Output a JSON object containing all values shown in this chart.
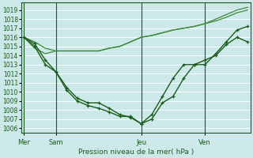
{
  "bg_color": "#cce8e8",
  "grid_color": "#b8d8d8",
  "line_color_dark": "#1a5c1a",
  "line_color_mid": "#3a8a3a",
  "xlabel": "Pression niveau de la mer( hPa )",
  "ylim": [
    1005.5,
    1019.8
  ],
  "yticks": [
    1006,
    1007,
    1008,
    1009,
    1010,
    1011,
    1012,
    1013,
    1014,
    1015,
    1016,
    1017,
    1018,
    1019
  ],
  "xtick_labels": [
    "Mer",
    "Sam",
    "Jeu",
    "Ven"
  ],
  "xtick_positions": [
    0,
    6,
    22,
    34
  ],
  "total_points": 42,
  "line1_x": [
    0,
    2,
    4,
    6,
    8,
    10,
    12,
    14,
    16,
    18,
    20,
    22,
    24,
    26,
    28,
    30,
    32,
    34,
    36,
    38,
    40,
    42
  ],
  "line1_y": [
    1016.0,
    1015.5,
    1014.8,
    1014.5,
    1014.5,
    1014.5,
    1014.5,
    1014.5,
    1014.8,
    1015.0,
    1015.5,
    1016.0,
    1016.2,
    1016.5,
    1016.8,
    1017.0,
    1017.2,
    1017.5,
    1017.8,
    1018.2,
    1018.7,
    1019.0
  ],
  "line2_x": [
    0,
    2,
    4,
    6,
    8,
    10,
    12,
    14,
    16,
    18,
    20,
    22,
    24,
    26,
    28,
    30,
    32,
    34,
    36,
    38,
    40,
    42
  ],
  "line2_y": [
    1016.0,
    1014.8,
    1014.2,
    1014.5,
    1014.5,
    1014.5,
    1014.5,
    1014.5,
    1014.8,
    1015.0,
    1015.5,
    1016.0,
    1016.2,
    1016.5,
    1016.8,
    1017.0,
    1017.2,
    1017.5,
    1018.0,
    1018.5,
    1019.0,
    1019.3
  ],
  "line3_x": [
    0,
    2,
    4,
    6,
    8,
    10,
    12,
    14,
    16,
    18,
    20,
    22,
    24,
    26,
    28,
    30,
    32,
    34,
    36,
    38,
    40,
    42
  ],
  "line3_y": [
    1016.0,
    1015.3,
    1013.5,
    1012.2,
    1010.5,
    1009.3,
    1008.8,
    1008.8,
    1008.2,
    1007.5,
    1007.2,
    1006.5,
    1007.0,
    1008.8,
    1009.5,
    1011.5,
    1013.0,
    1013.5,
    1014.0,
    1015.2,
    1016.0,
    1015.5
  ],
  "line4_x": [
    0,
    2,
    4,
    6,
    8,
    10,
    12,
    14,
    16,
    18,
    20,
    22,
    24,
    26,
    28,
    30,
    32,
    34,
    36,
    38,
    40,
    42
  ],
  "line4_y": [
    1016.0,
    1015.0,
    1013.0,
    1012.2,
    1010.2,
    1009.0,
    1008.5,
    1008.2,
    1007.8,
    1007.3,
    1007.3,
    1006.5,
    1007.5,
    1009.5,
    1011.5,
    1013.0,
    1013.0,
    1013.0,
    1014.2,
    1015.5,
    1016.8,
    1017.2
  ]
}
